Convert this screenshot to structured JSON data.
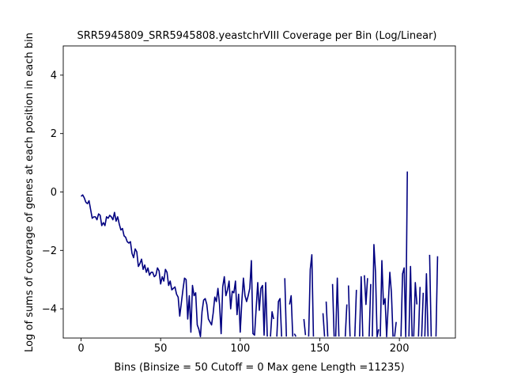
{
  "chart_data": {
    "type": "line",
    "title": "SRR5945809_SRR5945808.yeastchrVIII Coverage per Bin (Log/Linear)",
    "xlabel": "Bins  (Binsize = 50 Cutoff = 0 Max gene Length =11235)",
    "ylabel": "Log of sums of coverage of genes at each position in each bin",
    "xlim": [
      -11.2,
      235.2
    ],
    "ylim": [
      -5,
      5
    ],
    "x_ticks": [
      0,
      50,
      100,
      150,
      200
    ],
    "y_ticks": [
      -4,
      -2,
      0,
      2,
      4
    ],
    "grid": false,
    "color": "#000080",
    "series": [
      {
        "name": "",
        "segments": [
          {
            "x": [
              0,
              1,
              2,
              3,
              4,
              5,
              6,
              7,
              8,
              9,
              10,
              11,
              12,
              13,
              14,
              15,
              16,
              17,
              18,
              19,
              20,
              21,
              22,
              23,
              24,
              25,
              26,
              27,
              28,
              29,
              30,
              31,
              32,
              33,
              34,
              35,
              36,
              37,
              38,
              39,
              40,
              41,
              42,
              43,
              44,
              45,
              46,
              47,
              48,
              49,
              50,
              51,
              52,
              53,
              54,
              55,
              56,
              57,
              58,
              59,
              60,
              61,
              62,
              63,
              64,
              65,
              66,
              67,
              68,
              69,
              70,
              71,
              72,
              73,
              74,
              75,
              76,
              77,
              78,
              79,
              80,
              81,
              82,
              83,
              84,
              85,
              86,
              87,
              88,
              89,
              90,
              91,
              92,
              93,
              94,
              95,
              96,
              97,
              98,
              99,
              100,
              101,
              102,
              103,
              104,
              105,
              106,
              107,
              108,
              109,
              110,
              111,
              112,
              113,
              114,
              115,
              116,
              117
            ],
            "y": [
              -0.15,
              -0.1,
              -0.2,
              -0.35,
              -0.4,
              -0.3,
              -0.6,
              -0.9,
              -0.85,
              -0.85,
              -0.95,
              -0.75,
              -0.8,
              -1.15,
              -1.05,
              -1.15,
              -0.85,
              -0.9,
              -0.8,
              -0.85,
              -0.95,
              -0.7,
              -1.0,
              -0.85,
              -1.1,
              -1.3,
              -1.25,
              -1.5,
              -1.55,
              -1.7,
              -1.75,
              -1.7,
              -2.1,
              -2.25,
              -1.95,
              -2.05,
              -2.55,
              -2.45,
              -2.3,
              -2.65,
              -2.5,
              -2.75,
              -2.6,
              -2.85,
              -2.75,
              -2.75,
              -2.9,
              -2.85,
              -2.6,
              -2.7,
              -3.15,
              -2.9,
              -3.05,
              -2.65,
              -2.75,
              -3.2,
              -3.05,
              -3.35,
              -3.3,
              -3.25,
              -3.5,
              -3.6,
              -4.25,
              -3.8,
              -3.35,
              -2.95,
              -3.0,
              -4.35,
              -3.55,
              -4.8,
              -3.2,
              -3.55,
              -3.45,
              -4.55,
              -4.7,
              -4.95,
              -4.1,
              -3.7,
              -3.65,
              -3.85,
              -4.35,
              -4.45,
              -4.55,
              -4.15,
              -3.6,
              -3.75,
              -3.3,
              -3.85,
              -4.85,
              -3.25,
              -2.9,
              -3.55,
              -3.35,
              -3.05,
              -4.0,
              -3.4,
              -3.45,
              -3.05,
              -4.2,
              -3.5,
              -4.8,
              -3.75,
              -2.95,
              -3.55,
              -3.75,
              -3.55,
              -3.3,
              -2.35,
              -4.85,
              -4.9,
              -4.0,
              -3.1,
              -4.05,
              -3.3,
              -3.2,
              -4.9,
              -3.1,
              -4.95
            ]
          },
          {
            "x": [
              119,
              120,
              121
            ],
            "y": [
              -4.95,
              -4.1,
              -4.35
            ]
          },
          {
            "x": [
              123,
              124,
              125,
              126
            ],
            "y": [
              -4.95,
              -3.75,
              -3.65,
              -4.95
            ]
          },
          {
            "x": [
              128,
              129
            ],
            "y": [
              -2.95,
              -4.95
            ]
          },
          {
            "x": [
              131,
              132,
              133
            ],
            "y": [
              -3.85,
              -3.55,
              -4.95
            ]
          },
          {
            "x": [
              134,
              135
            ],
            "y": [
              -4.85,
              -4.95
            ]
          },
          {
            "x": [
              140,
              141
            ],
            "y": [
              -4.35,
              -4.9
            ]
          },
          {
            "x": [
              143,
              144,
              145,
              146
            ],
            "y": [
              -4.95,
              -2.65,
              -2.15,
              -4.95
            ]
          },
          {
            "x": [
              152,
              153
            ],
            "y": [
              -4.15,
              -4.95
            ]
          },
          {
            "x": [
              154,
              155
            ],
            "y": [
              -3.75,
              -4.95
            ]
          },
          {
            "x": [
              158,
              159
            ],
            "y": [
              -3.15,
              -4.95
            ]
          },
          {
            "x": [
              160,
              161,
              162
            ],
            "y": [
              -4.95,
              -2.95,
              -4.95
            ]
          },
          {
            "x": [
              166,
              167
            ],
            "y": [
              -4.95,
              -3.85
            ]
          },
          {
            "x": [
              168,
              169
            ],
            "y": [
              -3.2,
              -4.95
            ]
          },
          {
            "x": [
              172,
              173
            ],
            "y": [
              -4.95,
              -3.35
            ]
          },
          {
            "x": [
              175,
              176,
              177
            ],
            "y": [
              -4.95,
              -2.9,
              -4.95
            ]
          },
          {
            "x": [
              178,
              179,
              180
            ],
            "y": [
              -2.85,
              -3.85,
              -2.95
            ]
          },
          {
            "x": [
              181,
              182
            ],
            "y": [
              -4.95,
              -3.15
            ]
          },
          {
            "x": [
              183,
              184,
              185,
              186,
              187
            ],
            "y": [
              -4.95,
              -1.8,
              -2.75,
              -4.95,
              -4.7
            ]
          },
          {
            "x": [
              188,
              189,
              190,
              191,
              192,
              193,
              194,
              195,
              196
            ],
            "y": [
              -4.95,
              -2.35,
              -3.85,
              -3.65,
              -4.95,
              -3.85,
              -2.75,
              -3.45,
              -4.95
            ]
          },
          {
            "x": [
              197,
              198
            ],
            "y": [
              -4.95,
              -4.45
            ]
          },
          {
            "x": [
              201,
              202,
              203,
              204,
              205
            ],
            "y": [
              -4.95,
              -2.8,
              -2.6,
              -4.95,
              0.7
            ]
          },
          {
            "x": [
              206,
              207,
              208
            ],
            "y": [
              -4.95,
              -2.55,
              -4.95
            ]
          },
          {
            "x": [
              209,
              210,
              211
            ],
            "y": [
              -4.95,
              -3.1,
              -3.85
            ]
          },
          {
            "x": [
              212,
              213
            ],
            "y": [
              -4.95,
              -3.25
            ]
          },
          {
            "x": [
              214,
              215
            ],
            "y": [
              -4.95,
              -3.45
            ]
          },
          {
            "x": [
              216,
              217,
              218
            ],
            "y": [
              -4.95,
              -2.8,
              -4.95
            ]
          },
          {
            "x": [
              219,
              220
            ],
            "y": [
              -2.15,
              -4.95
            ]
          },
          {
            "x": [
              223,
              224
            ],
            "y": [
              -4.95,
              -2.2
            ]
          }
        ]
      }
    ]
  }
}
